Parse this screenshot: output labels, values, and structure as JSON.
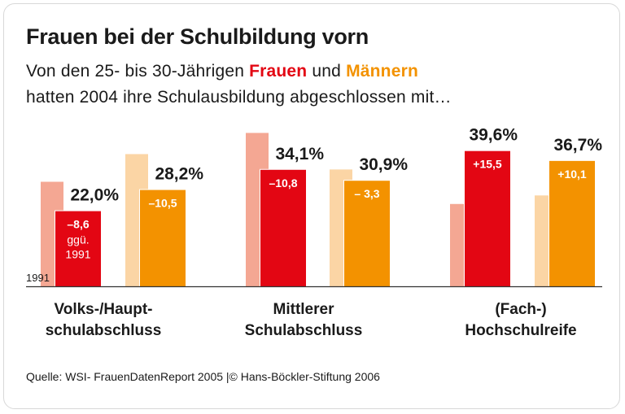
{
  "title": "Frauen bei der Schulbildung vorn",
  "subtitle": {
    "line1_pre": "Von den 25- bis 30-Jährigen ",
    "frauen": "Frauen",
    "und": " und ",
    "maenner": "Männern",
    "line2": "hatten 2004 ihre Schulausbildung abgeschlossen mit…"
  },
  "source": "Quelle: WSI- FrauenDatenReport 2005 |© Hans-Böckler-Stiftung 2006",
  "chart_data": {
    "type": "bar",
    "categories": [
      "Volks-/Haupt-\nschulabschluss",
      "Mittlerer\nSchulabschluss",
      "(Fach-)\nHochschulreife"
    ],
    "category_lines": [
      [
        "Volks-/Haupt-",
        "schulabschluss"
      ],
      [
        "Mittlerer",
        "Schulabschluss"
      ],
      [
        "(Fach-)",
        "Hochschulreife"
      ]
    ],
    "unit": "%",
    "baseline_label": "1991",
    "first_note": [
      "ggü.",
      "1991"
    ],
    "series": [
      {
        "name": "Frauen",
        "year": 2004,
        "values": [
          22.0,
          34.1,
          39.6
        ],
        "labels": [
          "22,0%",
          "34,1%",
          "39,6%"
        ],
        "changes": [
          "–8,6",
          "–10,8",
          "+15,5"
        ],
        "color": "#e30613"
      },
      {
        "name": "Frauen",
        "year": 1991,
        "values": [
          30.6,
          44.9,
          24.1
        ],
        "color": "#f4a793"
      },
      {
        "name": "Männern",
        "year": 2004,
        "values": [
          28.2,
          30.9,
          36.7
        ],
        "labels": [
          "28,2%",
          "30,9%",
          "36,7%"
        ],
        "changes": [
          "–10,5",
          "– 3,3",
          "+10,1"
        ],
        "color": "#f39200"
      },
      {
        "name": "Männern",
        "year": 1991,
        "values": [
          38.7,
          34.2,
          26.6
        ],
        "color": "#fbd5a5"
      }
    ],
    "ylim": [
      0,
      50
    ],
    "grid": false
  }
}
